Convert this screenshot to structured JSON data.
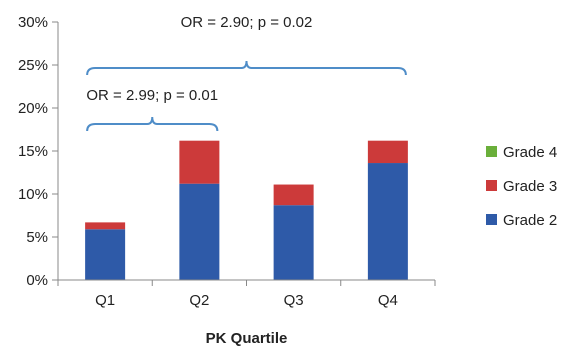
{
  "chart_data": {
    "type": "bar",
    "stacked": true,
    "categories": [
      "Q1",
      "Q2",
      "Q3",
      "Q4"
    ],
    "series": [
      {
        "name": "Grade 2",
        "color": "#2E5AA8",
        "values": [
          5.9,
          11.2,
          8.7,
          13.6
        ]
      },
      {
        "name": "Grade 3",
        "color": "#CC3A3A",
        "values": [
          0.8,
          5.0,
          2.4,
          2.6
        ]
      },
      {
        "name": "Grade 4",
        "color": "#6AAF3A",
        "values": [
          0,
          0,
          0,
          0
        ]
      }
    ],
    "xlabel": "PK Quartile",
    "ylabel": "",
    "ylim": [
      0,
      30
    ],
    "yticks": [
      "0%",
      "5%",
      "10%",
      "15%",
      "20%",
      "25%",
      "30%"
    ],
    "grid": false,
    "legend_position": "right",
    "legend_order": [
      "Grade 4",
      "Grade 3",
      "Grade 2"
    ],
    "annotations": [
      {
        "text": "OR = 2.90; p = 0.02",
        "from": "Q1",
        "to": "Q4"
      },
      {
        "text": "OR = 2.99; p = 0.01",
        "from": "Q1",
        "to": "Q2"
      }
    ]
  }
}
